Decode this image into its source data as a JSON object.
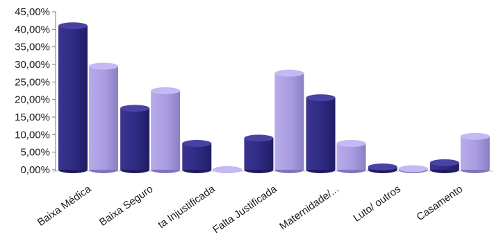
{
  "chart_data": {
    "type": "bar",
    "categories": [
      "Baixa Médica",
      "Baixa Seguro",
      "ta Injustificada",
      "Falta Justificada",
      "Maternidade/...",
      "Luto/ outros",
      "Casamento"
    ],
    "series": [
      {
        "values": [
          41.0,
          17.5,
          7.5,
          9.0,
          20.5,
          0.8,
          2.0
        ]
      },
      {
        "values": [
          29.5,
          22.5,
          0.0,
          27.5,
          7.5,
          0.3,
          9.5
        ]
      }
    ],
    "ylim": [
      0,
      45
    ],
    "yticks": [
      "0,00%",
      "5,00%",
      "10,00%",
      "15,00%",
      "20,00%",
      "25,00%",
      "30,00%",
      "35,00%",
      "40,00%",
      "45,00%"
    ],
    "grid": false,
    "colors": [
      "#2e2a82",
      "#a99be0"
    ]
  }
}
